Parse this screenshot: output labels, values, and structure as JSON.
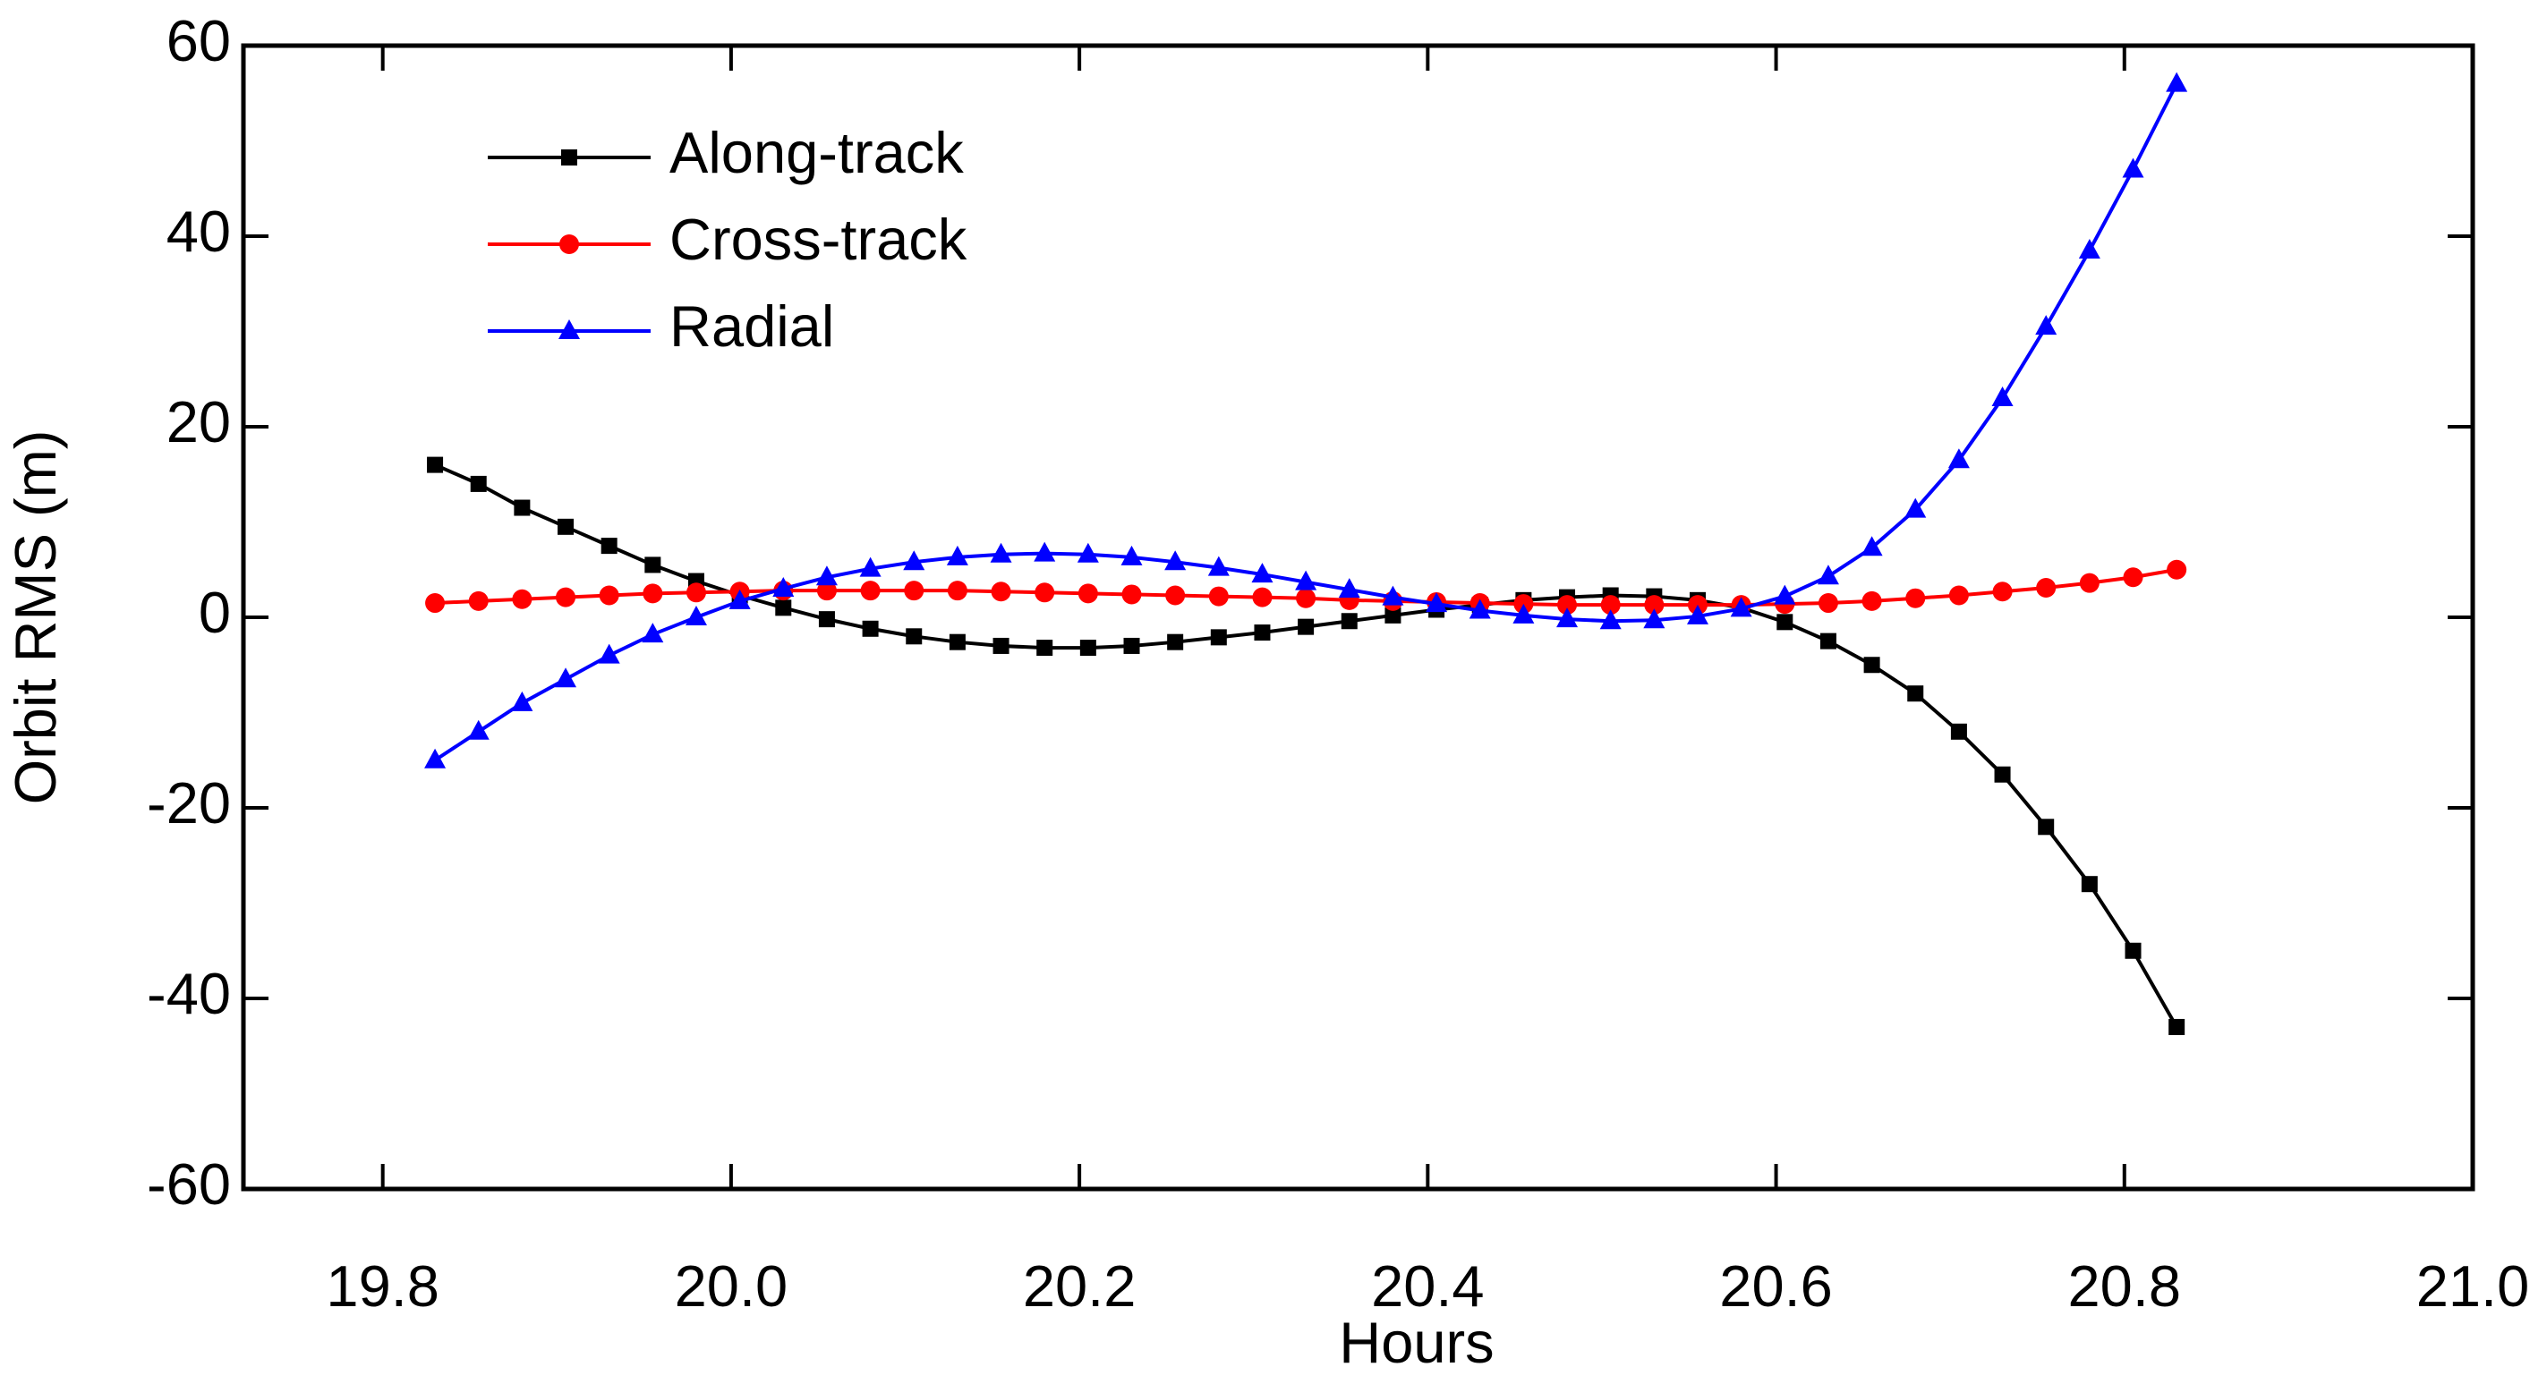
{
  "chart_data": {
    "type": "line",
    "x_label": "Hours",
    "y_label": "Orbit RMS (m)",
    "x": [
      19.83,
      19.855,
      19.88,
      19.905,
      19.93,
      19.955,
      19.98,
      20.005,
      20.03,
      20.055,
      20.08,
      20.105,
      20.13,
      20.155,
      20.18,
      20.205,
      20.23,
      20.255,
      20.28,
      20.305,
      20.33,
      20.355,
      20.38,
      20.405,
      20.43,
      20.455,
      20.48,
      20.505,
      20.53,
      20.555,
      20.58,
      20.605,
      20.63,
      20.655,
      20.68,
      20.705,
      20.73,
      20.755,
      20.78,
      20.805,
      20.83
    ],
    "series": [
      {
        "name": "Along-track",
        "color": "#000000",
        "marker": "square",
        "values": [
          16,
          14,
          11.5,
          9.5,
          7.5,
          5.5,
          3.8,
          2.3,
          1,
          -0.2,
          -1.2,
          -2,
          -2.6,
          -3,
          -3.2,
          -3.2,
          -3,
          -2.6,
          -2.1,
          -1.6,
          -1,
          -0.4,
          0.2,
          0.8,
          1.3,
          1.8,
          2.1,
          2.3,
          2.2,
          1.8,
          1,
          -0.5,
          -2.5,
          -5,
          -8,
          -12,
          -16.5,
          -22,
          -28,
          -35,
          -43
        ]
      },
      {
        "name": "Cross-track",
        "color": "#ff0000",
        "marker": "circle",
        "values": [
          1.5,
          1.7,
          1.9,
          2.1,
          2.3,
          2.5,
          2.6,
          2.7,
          2.8,
          2.8,
          2.8,
          2.8,
          2.8,
          2.7,
          2.6,
          2.5,
          2.4,
          2.3,
          2.2,
          2.1,
          2.0,
          1.8,
          1.7,
          1.6,
          1.5,
          1.4,
          1.3,
          1.3,
          1.3,
          1.3,
          1.3,
          1.4,
          1.5,
          1.7,
          2.0,
          2.3,
          2.7,
          3.1,
          3.6,
          4.2,
          5.0
        ]
      },
      {
        "name": "Radial",
        "color": "#0000ff",
        "marker": "triangle",
        "values": [
          -15,
          -12,
          -9,
          -6.5,
          -4,
          -1.8,
          0,
          1.7,
          3,
          4.2,
          5.1,
          5.8,
          6.3,
          6.6,
          6.7,
          6.6,
          6.3,
          5.8,
          5.2,
          4.5,
          3.7,
          2.9,
          2.1,
          1.4,
          0.7,
          0.2,
          -0.2,
          -0.4,
          -0.3,
          0.1,
          0.9,
          2.2,
          4.3,
          7.3,
          11.3,
          16.5,
          23,
          30.5,
          38.5,
          47,
          56
        ]
      }
    ],
    "xlim": [
      19.72,
      21.0
    ],
    "ylim": [
      -60,
      60
    ],
    "xticks": [
      19.8,
      {
        "value": 20.0,
        "label": "20.0"
      },
      20.2,
      20.4,
      20.6,
      20.8,
      {
        "value": 21.0,
        "label": "21.0"
      }
    ],
    "yticks": [
      -60,
      -40,
      -20,
      0,
      20,
      40,
      60
    ],
    "legend": "upper left"
  }
}
